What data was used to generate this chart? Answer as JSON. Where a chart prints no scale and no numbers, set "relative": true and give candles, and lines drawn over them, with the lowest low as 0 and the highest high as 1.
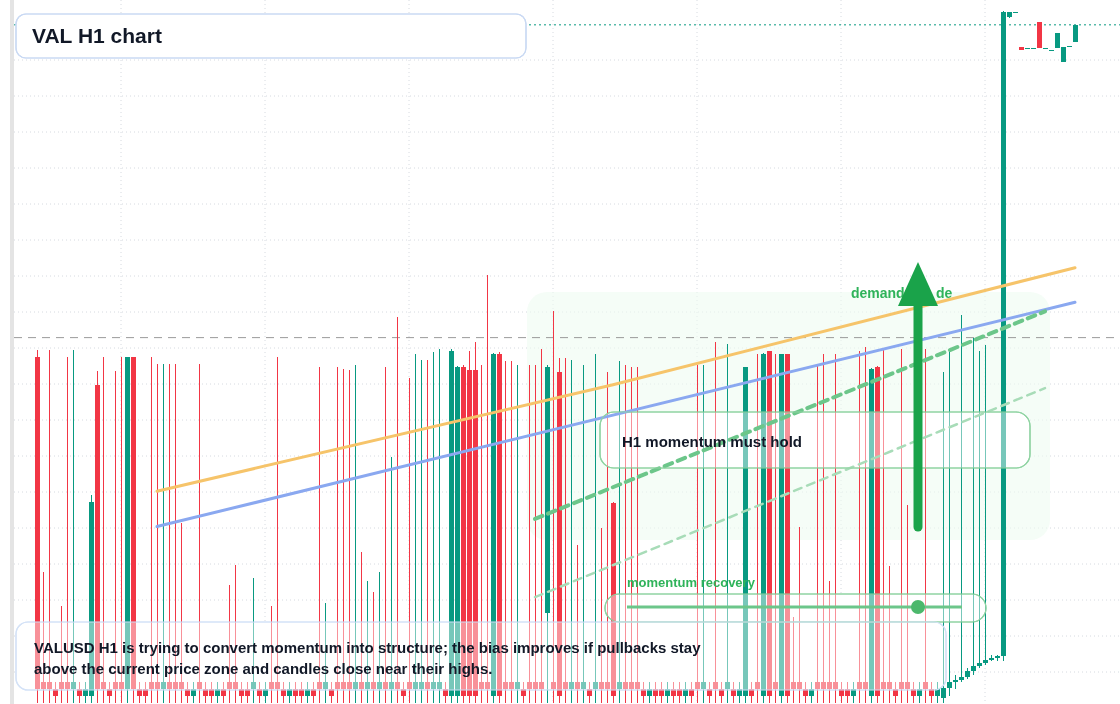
{
  "chart_data": {
    "type": "candlestick",
    "title": "VAL H1 chart",
    "relative": true,
    "grid": true,
    "annotations": [
      "VALUSD H1 is trying to convert momentum into structure; the bias improves if pullbacks stay above the current price zone and candles close near their highs.",
      "H1 momentum must hold",
      "momentum recovery",
      "demand",
      "de"
    ],
    "ref_lines": [
      {
        "axis": "y",
        "value": 0.528,
        "color": "#9a9a9a",
        "line_style": "dashed"
      },
      {
        "axis": "y",
        "value": 0.98,
        "color": "#089981",
        "line_style": "dotted"
      }
    ],
    "categories": [
      null,
      null,
      null,
      null,
      null,
      null,
      null,
      null,
      null,
      null,
      null,
      null,
      null,
      null,
      null,
      null,
      null,
      null,
      null,
      null,
      null,
      null,
      null,
      null,
      null,
      null,
      null,
      null,
      null,
      null,
      null,
      null,
      null,
      null,
      null,
      null,
      null,
      null,
      null,
      null,
      null,
      null,
      null,
      null,
      null,
      null,
      null,
      null,
      null,
      null,
      null,
      null,
      null,
      null,
      null,
      null,
      null,
      null,
      null,
      null,
      null,
      null,
      null,
      null,
      null,
      null,
      null,
      null,
      null,
      null,
      null,
      null,
      null,
      null,
      null,
      null,
      null,
      null,
      null,
      null,
      null,
      null,
      null,
      null,
      null,
      null,
      null,
      null,
      null,
      null,
      null,
      null,
      null,
      null,
      null,
      null,
      null,
      null,
      null,
      null,
      null,
      null,
      null,
      null,
      null,
      null,
      null,
      null,
      null,
      null,
      null,
      null,
      null,
      null,
      null,
      null,
      null,
      null,
      null,
      null,
      null,
      null,
      null,
      null,
      null,
      null,
      null,
      null,
      null,
      null,
      null,
      null,
      null,
      null,
      null,
      null,
      null,
      null,
      null,
      null,
      null,
      null,
      null,
      null,
      null,
      null,
      null,
      null,
      null,
      null,
      null,
      null,
      null,
      null,
      null,
      null,
      null,
      null,
      null,
      null,
      null,
      null,
      null,
      null,
      null,
      null,
      null,
      null,
      null,
      null,
      null,
      null,
      null,
      null
    ],
    "ohlc": [
      [
        0.5,
        0.51,
        0,
        0.02
      ],
      [
        0.03,
        0.19,
        0,
        0.02
      ],
      [
        0.03,
        0.51,
        0,
        0.02
      ],
      [
        0.02,
        0.03,
        0,
        0.01
      ],
      [
        0.03,
        0.14,
        0,
        0.02
      ],
      [
        0.03,
        0.5,
        0,
        0.02
      ],
      [
        0.02,
        0.51,
        0,
        0.03
      ],
      [
        0.02,
        0.03,
        0,
        0.01
      ],
      [
        0.01,
        0.03,
        0,
        0.02
      ],
      [
        0.01,
        0.3,
        0,
        0.29
      ],
      [
        0.46,
        0.48,
        0,
        0.02
      ],
      [
        0.03,
        0.5,
        0,
        0.02
      ],
      [
        0.02,
        0.03,
        0,
        0.01
      ],
      [
        0.03,
        0.48,
        0,
        0.02
      ],
      [
        0.03,
        0.5,
        0,
        0.02
      ],
      [
        0.02,
        0.5,
        0,
        0.5
      ],
      [
        0.5,
        0.5,
        0,
        0.02
      ],
      [
        0.02,
        0.03,
        0,
        0.01
      ],
      [
        0.02,
        0.03,
        0,
        0.01
      ],
      [
        0.03,
        0.5,
        0,
        0.02
      ],
      [
        0.03,
        0.49,
        0,
        0.02
      ],
      [
        0.02,
        0.49,
        0,
        0.03
      ],
      [
        0.03,
        0.49,
        0,
        0.02
      ],
      [
        0.03,
        0.49,
        0,
        0.02
      ],
      [
        0.03,
        0.26,
        0,
        0.02
      ],
      [
        0.02,
        0.03,
        0,
        0.01
      ],
      [
        0.01,
        0.03,
        0,
        0.02
      ],
      [
        0.03,
        0.49,
        0,
        0.02
      ],
      [
        0.02,
        0.03,
        0,
        0.01
      ],
      [
        0.02,
        0.03,
        0,
        0.01
      ],
      [
        0.01,
        0.03,
        0,
        0.02
      ],
      [
        0.02,
        0.03,
        0,
        0.01
      ],
      [
        0.03,
        0.17,
        0,
        0.02
      ],
      [
        0.03,
        0.2,
        0,
        0.02
      ],
      [
        0.02,
        0.03,
        0,
        0.01
      ],
      [
        0.02,
        0.03,
        0,
        0.01
      ],
      [
        0.02,
        0.18,
        0,
        0.03
      ],
      [
        0.02,
        0.03,
        0,
        0.01
      ],
      [
        0.01,
        0.03,
        0,
        0.02
      ],
      [
        0.03,
        0.14,
        0,
        0.02
      ],
      [
        0.03,
        0.5,
        0,
        0.02
      ],
      [
        0.02,
        0.03,
        0,
        0.01
      ],
      [
        0.01,
        0.03,
        0,
        0.02
      ],
      [
        0.02,
        0.03,
        0,
        0.01
      ],
      [
        0.02,
        0.03,
        0,
        0.01
      ],
      [
        0.01,
        0.03,
        0,
        0.02
      ],
      [
        0.02,
        0.03,
        0,
        0.01
      ],
      [
        0.03,
        0.486,
        0,
        0.02
      ],
      [
        0.02,
        0.144,
        0,
        0.03
      ],
      [
        0.02,
        0.03,
        0,
        0.01
      ],
      [
        0.03,
        0.485,
        0,
        0.02
      ],
      [
        0.03,
        0.483,
        0,
        0.02
      ],
      [
        0.03,
        0.481,
        0,
        0.02
      ],
      [
        0.02,
        0.488,
        0,
        0.03
      ],
      [
        0.03,
        0.218,
        0,
        0.02
      ],
      [
        0.02,
        0.176,
        0,
        0.03
      ],
      [
        0.03,
        0.16,
        0,
        0.02
      ],
      [
        0.02,
        0.19,
        0,
        0.03
      ],
      [
        0.03,
        0.485,
        0,
        0.02
      ],
      [
        0.02,
        0.356,
        0,
        0.03
      ],
      [
        0.03,
        0.558,
        0,
        0.02
      ],
      [
        0.02,
        0.03,
        0,
        0.01
      ],
      [
        0.03,
        0.47,
        0,
        0.02
      ],
      [
        0.02,
        0.505,
        0,
        0.03
      ],
      [
        0.02,
        0.495,
        0,
        0.03
      ],
      [
        0.03,
        0.495,
        0,
        0.02
      ],
      [
        0.02,
        0.507,
        0,
        0.03
      ],
      [
        0.02,
        0.512,
        0,
        0.03
      ],
      [
        0.02,
        0.03,
        0,
        0.01
      ],
      [
        0.01,
        0.512,
        0,
        0.509
      ],
      [
        0.01,
        0.487,
        0,
        0.485
      ],
      [
        0.486,
        0.488,
        0,
        0.01
      ],
      [
        0.481,
        0.508,
        0,
        0.01
      ],
      [
        0.481,
        0.522,
        0,
        0.01
      ],
      [
        0.03,
        0.489,
        0,
        0.02
      ],
      [
        0.03,
        0.619,
        0,
        0.02
      ],
      [
        0.01,
        0.506,
        0,
        0.504
      ],
      [
        0.505,
        0.507,
        0,
        0.01
      ],
      [
        0.03,
        0.494,
        0,
        0.02
      ],
      [
        0.03,
        0.494,
        0,
        0.02
      ],
      [
        0.02,
        0.489,
        0,
        0.03
      ],
      [
        0.02,
        0.03,
        0,
        0.01
      ],
      [
        0.03,
        0.489,
        0,
        0.02
      ],
      [
        0.03,
        0.489,
        0,
        0.02
      ],
      [
        0.03,
        0.511,
        0,
        0.02
      ],
      [
        0.13,
        0.488,
        0,
        0.486
      ],
      [
        0.03,
        0.566,
        0,
        0.02
      ],
      [
        0.479,
        0.498,
        0,
        0.01
      ],
      [
        0.03,
        0.498,
        0,
        0.02
      ],
      [
        0.02,
        0.495,
        0,
        0.03
      ],
      [
        0.03,
        0.228,
        0,
        0.02
      ],
      [
        0.02,
        0.488,
        0,
        0.03
      ],
      [
        0.02,
        0.03,
        0,
        0.01
      ],
      [
        0.02,
        0.505,
        0,
        0.03
      ],
      [
        0.03,
        0.253,
        0,
        0.02
      ],
      [
        0.03,
        0.478,
        0,
        0.02
      ],
      [
        0.289,
        0.29,
        0,
        0.01
      ],
      [
        0.02,
        0.494,
        0,
        0.03
      ],
      [
        0.03,
        0.488,
        0,
        0.02
      ],
      [
        0.03,
        0.485,
        0,
        0.02
      ],
      [
        0.03,
        0.486,
        0,
        0.02
      ],
      [
        0.02,
        0.03,
        0,
        0.01
      ],
      [
        0.01,
        0.03,
        0,
        0.02
      ],
      [
        0.02,
        0.03,
        0,
        0.01
      ],
      [
        0.02,
        0.03,
        0,
        0.01
      ],
      [
        0.01,
        0.03,
        0,
        0.02
      ],
      [
        0.02,
        0.03,
        0,
        0.01
      ],
      [
        0.02,
        0.03,
        0,
        0.01
      ],
      [
        0.01,
        0.03,
        0,
        0.02
      ],
      [
        0.02,
        0.03,
        0,
        0.01
      ],
      [
        0.03,
        0.488,
        0,
        0.02
      ],
      [
        0.02,
        0.488,
        0,
        0.03
      ],
      [
        0.02,
        0.03,
        0,
        0.01
      ],
      [
        0.03,
        0.522,
        0,
        0.02
      ],
      [
        0.02,
        0.03,
        0,
        0.01
      ],
      [
        0.02,
        0.519,
        0,
        0.03
      ],
      [
        0.02,
        0.03,
        0,
        0.01
      ],
      [
        0.01,
        0.03,
        0,
        0.02
      ],
      [
        0.01,
        0.486,
        0,
        0.485
      ],
      [
        0.02,
        0.03,
        0,
        0.01
      ],
      [
        0.03,
        0.505,
        0,
        0.02
      ],
      [
        0.01,
        0.506,
        0,
        0.505
      ],
      [
        0.508,
        0.509,
        0,
        0.01
      ],
      [
        0.03,
        0.504,
        0,
        0.02
      ],
      [
        0.01,
        0.505,
        0,
        0.504
      ],
      [
        0.504,
        0.505,
        0,
        0.01
      ],
      [
        0.03,
        0.124,
        0,
        0.02
      ],
      [
        0.03,
        0.254,
        0,
        0.02
      ],
      [
        0.02,
        0.03,
        0,
        0.01
      ],
      [
        0.01,
        0.03,
        0,
        0.02
      ],
      [
        0.03,
        0.489,
        0,
        0.02
      ],
      [
        0.03,
        0.504,
        0,
        0.02
      ],
      [
        0.03,
        0.177,
        0,
        0.02
      ],
      [
        0.03,
        0.504,
        0,
        0.02
      ],
      [
        0.02,
        0.03,
        0,
        0.01
      ],
      [
        0.02,
        0.03,
        0,
        0.01
      ],
      [
        0.01,
        0.03,
        0,
        0.02
      ],
      [
        0.03,
        0.508,
        0,
        0.02
      ],
      [
        0.03,
        0.514,
        0,
        0.02
      ],
      [
        0.01,
        0.484,
        0,
        0.482
      ],
      [
        0.485,
        0.487,
        0,
        0.01
      ],
      [
        0.03,
        0.511,
        0,
        0.02
      ],
      [
        0.03,
        0.198,
        0,
        0.02
      ],
      [
        0.02,
        0.03,
        0,
        0.01
      ],
      [
        0.03,
        0.511,
        0,
        0.02
      ],
      [
        0.03,
        0.286,
        0,
        0.02
      ],
      [
        0.02,
        0.03,
        0,
        0.01
      ],
      [
        0.01,
        0.03,
        0,
        0.02
      ],
      [
        0.03,
        0.511,
        0,
        0.02
      ],
      [
        0.02,
        0.03,
        0,
        0.01
      ],
      [
        0.01,
        0.03,
        0,
        0.02
      ],
      [
        0.007,
        0.478,
        0,
        0.022
      ],
      [
        0.022,
        0.512,
        0.01,
        0.03
      ],
      [
        0.03,
        0.04,
        0.02,
        0.033
      ],
      [
        0.033,
        0.56,
        0.03,
        0.038
      ],
      [
        0.038,
        0.05,
        0.035,
        0.046
      ],
      [
        0.046,
        0.527,
        0.04,
        0.053
      ],
      [
        0.053,
        0.509,
        0.05,
        0.058
      ],
      [
        0.058,
        0.517,
        0.055,
        0.062
      ],
      [
        0.062,
        0.07,
        0.06,
        0.065
      ],
      [
        0.065,
        0.07,
        0.06,
        0.068
      ],
      [
        0.068,
        1,
        0.06,
        0.998
      ],
      [
        0.991,
        0.998,
        0.99,
        0.998
      ],
      [
        0.998,
        0.998,
        0.998,
        0.998
      ],
      [
        0.948,
        0.948,
        0.944,
        0.944
      ],
      [
        0.947,
        0.947,
        0.947,
        0.947
      ],
      [
        0.947,
        0.947,
        0.947,
        0.947
      ],
      [
        0.984,
        0.984,
        0.947,
        0.947
      ],
      [
        0.947,
        0.947,
        0.947,
        0.947
      ],
      [
        0.944,
        0.944,
        0.944,
        0.944
      ],
      [
        0.947,
        0.968,
        0.947,
        0.968
      ],
      [
        0.926,
        0.948,
        0.926,
        0.948
      ],
      [
        0.95,
        0.95,
        0.95,
        0.95
      ],
      [
        0.955,
        0.98,
        0.955,
        0.98
      ]
    ],
    "series": [
      {
        "type": "line",
        "values": [
          null,
          null,
          null,
          null,
          null,
          null,
          null,
          null,
          null,
          null,
          null,
          null,
          null,
          null,
          null,
          null,
          null,
          null,
          null,
          null,
          0.306,
          null,
          null,
          null,
          null,
          null,
          null,
          null,
          null,
          null,
          null,
          null,
          null,
          null,
          null,
          null,
          null,
          null,
          null,
          null,
          null,
          null,
          null,
          null,
          null,
          null,
          null,
          null,
          null,
          null,
          null,
          null,
          null,
          null,
          null,
          null,
          null,
          null,
          null,
          null,
          null,
          null,
          null,
          null,
          null,
          null,
          null,
          null,
          null,
          null,
          null,
          null,
          null,
          null,
          null,
          null,
          null,
          null,
          null,
          null,
          null,
          null,
          null,
          null,
          null,
          null,
          null,
          null,
          null,
          null,
          null,
          null,
          null,
          null,
          null,
          null,
          0.46,
          null,
          null,
          null,
          null,
          null,
          null,
          null,
          null,
          null,
          null,
          null,
          null,
          null,
          null,
          null,
          null,
          null,
          null,
          null,
          null,
          null,
          null,
          null,
          null,
          null,
          null,
          null,
          null,
          null,
          null,
          null,
          null,
          null,
          null,
          null,
          null,
          null,
          null,
          null,
          null,
          null,
          null,
          null,
          null,
          null,
          null,
          null,
          null,
          null,
          null,
          null,
          null,
          null,
          null,
          null,
          null,
          null,
          null,
          null,
          null,
          null,
          null,
          null,
          null,
          null,
          null,
          null,
          null,
          null,
          null,
          null,
          null,
          null,
          null,
          null,
          null,
          0.629
        ],
        "color": "#f6c46a",
        "line_style": "solid"
      },
      {
        "type": "line",
        "values": [
          null,
          null,
          null,
          null,
          null,
          null,
          null,
          null,
          null,
          null,
          null,
          null,
          null,
          null,
          null,
          null,
          null,
          null,
          null,
          null,
          0.255,
          null,
          null,
          null,
          null,
          null,
          null,
          null,
          null,
          null,
          null,
          null,
          null,
          null,
          null,
          null,
          null,
          null,
          null,
          null,
          null,
          null,
          null,
          null,
          null,
          null,
          null,
          null,
          null,
          null,
          null,
          null,
          null,
          null,
          null,
          null,
          null,
          null,
          null,
          null,
          null,
          null,
          null,
          null,
          null,
          null,
          null,
          null,
          null,
          null,
          null,
          null,
          null,
          null,
          null,
          null,
          null,
          null,
          null,
          null,
          null,
          null,
          null,
          null,
          null,
          null,
          null,
          null,
          null,
          null,
          null,
          null,
          null,
          null,
          null,
          null,
          null,
          null,
          null,
          null,
          null,
          null,
          null,
          null,
          null,
          null,
          null,
          null,
          null,
          null,
          null,
          null,
          null,
          null,
          null,
          null,
          null,
          null,
          null,
          null,
          null,
          null,
          null,
          null,
          null,
          null,
          null,
          null,
          null,
          null,
          null,
          null,
          null,
          null,
          null,
          null,
          null,
          null,
          null,
          null,
          null,
          null,
          null,
          null,
          null,
          null,
          null,
          null,
          null,
          null,
          null,
          null,
          null,
          null,
          null,
          null,
          null,
          null,
          null,
          null,
          null,
          null,
          null,
          null,
          null,
          null,
          null,
          null,
          null,
          null,
          null,
          null,
          null,
          0.579
        ],
        "color": "#8aa8f0",
        "line_style": "solid"
      },
      {
        "type": "line",
        "values": [
          null,
          null,
          null,
          null,
          null,
          null,
          null,
          null,
          null,
          null,
          null,
          null,
          null,
          null,
          null,
          null,
          null,
          null,
          null,
          null,
          null,
          null,
          null,
          null,
          null,
          null,
          null,
          null,
          null,
          null,
          null,
          null,
          null,
          null,
          null,
          null,
          null,
          null,
          null,
          null,
          null,
          null,
          null,
          null,
          null,
          null,
          null,
          null,
          null,
          null,
          null,
          null,
          null,
          null,
          null,
          null,
          null,
          null,
          null,
          null,
          null,
          null,
          null,
          null,
          null,
          null,
          null,
          null,
          null,
          null,
          null,
          null,
          null,
          null,
          null,
          null,
          null,
          null,
          null,
          null,
          null,
          null,
          null,
          0.266,
          null,
          null,
          null,
          null,
          null,
          null,
          null,
          null,
          null,
          null,
          null,
          null,
          null,
          null,
          null,
          null,
          null,
          null,
          null,
          null,
          null,
          null,
          null,
          null,
          null,
          null,
          null,
          null,
          null,
          null,
          null,
          null,
          null,
          null,
          null,
          null,
          null,
          null,
          null,
          null,
          null,
          null,
          null,
          null,
          null,
          null,
          null,
          null,
          null,
          null,
          null,
          null,
          null,
          null,
          null,
          null,
          null,
          null,
          null,
          null,
          null,
          null,
          null,
          null,
          null,
          null,
          null,
          null,
          null,
          null,
          null,
          null,
          null,
          null,
          null,
          null,
          null,
          null,
          null,
          null,
          null,
          null,
          null,
          null,
          0.566,
          null,
          null,
          null,
          null,
          null
        ],
        "color": "#6cc68a",
        "line_style": "dashed"
      },
      {
        "type": "line",
        "values": [
          null,
          null,
          null,
          null,
          null,
          null,
          null,
          null,
          null,
          null,
          null,
          null,
          null,
          null,
          null,
          null,
          null,
          null,
          null,
          null,
          null,
          null,
          null,
          null,
          null,
          null,
          null,
          null,
          null,
          null,
          null,
          null,
          null,
          null,
          null,
          null,
          null,
          null,
          null,
          null,
          null,
          null,
          null,
          null,
          null,
          null,
          null,
          null,
          null,
          null,
          null,
          null,
          null,
          null,
          null,
          null,
          null,
          null,
          null,
          null,
          null,
          null,
          null,
          null,
          null,
          null,
          null,
          null,
          null,
          null,
          null,
          null,
          null,
          null,
          null,
          null,
          null,
          null,
          null,
          null,
          null,
          null,
          null,
          0.153,
          null,
          null,
          null,
          null,
          null,
          null,
          null,
          null,
          null,
          null,
          null,
          null,
          null,
          null,
          null,
          null,
          null,
          null,
          null,
          null,
          null,
          null,
          null,
          null,
          null,
          null,
          null,
          null,
          null,
          null,
          null,
          null,
          null,
          null,
          null,
          null,
          null,
          null,
          null,
          null,
          null,
          null,
          null,
          null,
          null,
          null,
          null,
          null,
          null,
          null,
          null,
          null,
          null,
          null,
          null,
          null,
          null,
          null,
          null,
          null,
          null,
          null,
          null,
          null,
          null,
          null,
          null,
          null,
          null,
          null,
          null,
          null,
          null,
          null,
          null,
          null,
          null,
          null,
          null,
          null,
          null,
          null,
          null,
          null,
          0.455,
          null,
          null,
          null,
          null,
          null
        ],
        "color": "#a8dcb8",
        "line_style": "dashed"
      }
    ]
  }
}
